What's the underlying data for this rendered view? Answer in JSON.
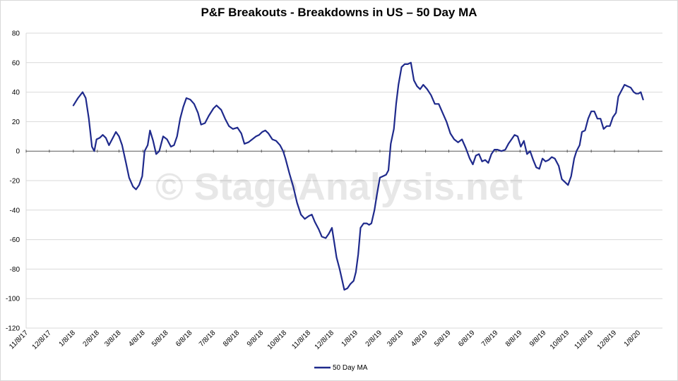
{
  "chart_data": {
    "type": "line",
    "title": "P&F Breakouts - Breakdowns in US – 50 Day MA",
    "watermark": "© StageAnalysis.net",
    "ylim": [
      -120,
      80
    ],
    "y_ticks": [
      80,
      60,
      40,
      20,
      0,
      -20,
      -40,
      -60,
      -80,
      -100,
      -120
    ],
    "x_tick_labels": [
      "11/8/17",
      "12/8/17",
      "1/8/18",
      "2/8/18",
      "3/8/18",
      "4/8/18",
      "5/8/18",
      "6/8/18",
      "7/8/18",
      "8/8/18",
      "9/8/18",
      "10/8/18",
      "11/8/18",
      "12/8/18",
      "1/8/19",
      "2/8/19",
      "3/8/19",
      "4/8/19",
      "5/8/19",
      "6/8/19",
      "7/8/19",
      "8/8/19",
      "9/8/19",
      "10/8/19",
      "11/8/19",
      "12/8/19",
      "1/8/20"
    ],
    "grid": true,
    "legend_position": "bottom",
    "colors": {
      "series": "#1f2a8c",
      "grid": "#d9d9d9",
      "axis": "#595959"
    },
    "series": [
      {
        "name": "50 Day MA",
        "points": [
          [
            "1/8/18",
            31
          ],
          [
            "1/14/18",
            36
          ],
          [
            "1/20/18",
            40
          ],
          [
            "1/24/18",
            36
          ],
          [
            "1/28/18",
            22
          ],
          [
            "2/1/18",
            3
          ],
          [
            "2/4/18",
            0
          ],
          [
            "2/7/18",
            8
          ],
          [
            "2/11/18",
            9
          ],
          [
            "2/15/18",
            11
          ],
          [
            "2/19/18",
            9
          ],
          [
            "2/23/18",
            4
          ],
          [
            "2/28/18",
            9
          ],
          [
            "3/4/18",
            13
          ],
          [
            "3/8/18",
            10
          ],
          [
            "3/12/18",
            4
          ],
          [
            "3/17/18",
            -8
          ],
          [
            "3/21/18",
            -18
          ],
          [
            "3/26/18",
            -24
          ],
          [
            "3/30/18",
            -26
          ],
          [
            "4/3/18",
            -23
          ],
          [
            "4/7/18",
            -17
          ],
          [
            "4/10/18",
            0
          ],
          [
            "4/14/18",
            4
          ],
          [
            "4/17/18",
            14
          ],
          [
            "4/21/18",
            7
          ],
          [
            "4/25/18",
            -2
          ],
          [
            "4/29/18",
            0
          ],
          [
            "5/4/18",
            10
          ],
          [
            "5/9/18",
            8
          ],
          [
            "5/14/18",
            3
          ],
          [
            "5/18/18",
            4
          ],
          [
            "5/22/18",
            10
          ],
          [
            "5/26/18",
            22
          ],
          [
            "5/30/18",
            30
          ],
          [
            "6/3/18",
            36
          ],
          [
            "6/8/18",
            35
          ],
          [
            "6/13/18",
            32
          ],
          [
            "6/18/18",
            26
          ],
          [
            "6/22/18",
            18
          ],
          [
            "6/27/18",
            19
          ],
          [
            "7/2/18",
            24
          ],
          [
            "7/8/18",
            29
          ],
          [
            "7/12/18",
            31
          ],
          [
            "7/18/18",
            28
          ],
          [
            "7/23/18",
            22
          ],
          [
            "7/28/18",
            17
          ],
          [
            "8/2/18",
            15
          ],
          [
            "8/8/18",
            16
          ],
          [
            "8/13/18",
            12
          ],
          [
            "8/17/18",
            5
          ],
          [
            "8/22/18",
            6
          ],
          [
            "8/27/18",
            8
          ],
          [
            "9/1/18",
            10
          ],
          [
            "9/5/18",
            11
          ],
          [
            "9/9/18",
            13
          ],
          [
            "9/13/18",
            14
          ],
          [
            "9/17/18",
            12
          ],
          [
            "9/22/18",
            8
          ],
          [
            "9/27/18",
            7
          ],
          [
            "10/2/18",
            4
          ],
          [
            "10/6/18",
            0
          ],
          [
            "10/9/18",
            -5
          ],
          [
            "10/14/18",
            -15
          ],
          [
            "10/19/18",
            -24
          ],
          [
            "10/24/18",
            -35
          ],
          [
            "10/29/18",
            -43
          ],
          [
            "11/3/18",
            -46
          ],
          [
            "11/8/18",
            -44
          ],
          [
            "11/12/18",
            -43
          ],
          [
            "11/16/18",
            -48
          ],
          [
            "11/21/18",
            -53
          ],
          [
            "11/25/18",
            -58
          ],
          [
            "11/30/18",
            -59
          ],
          [
            "12/4/18",
            -56
          ],
          [
            "12/8/18",
            -52
          ],
          [
            "12/11/18",
            -62
          ],
          [
            "12/14/18",
            -72
          ],
          [
            "12/18/18",
            -80
          ],
          [
            "12/21/18",
            -87
          ],
          [
            "12/24/18",
            -94
          ],
          [
            "12/28/18",
            -93
          ],
          [
            "1/1/19",
            -90
          ],
          [
            "1/5/19",
            -88
          ],
          [
            "1/8/19",
            -82
          ],
          [
            "1/11/19",
            -70
          ],
          [
            "1/14/19",
            -52
          ],
          [
            "1/18/19",
            -49
          ],
          [
            "1/22/19",
            -49
          ],
          [
            "1/25/19",
            -50
          ],
          [
            "1/28/19",
            -49
          ],
          [
            "2/1/19",
            -40
          ],
          [
            "2/4/19",
            -30
          ],
          [
            "2/8/19",
            -18
          ],
          [
            "2/12/19",
            -17
          ],
          [
            "2/16/19",
            -16
          ],
          [
            "2/19/19",
            -13
          ],
          [
            "2/22/19",
            5
          ],
          [
            "2/26/19",
            15
          ],
          [
            "3/1/19",
            32
          ],
          [
            "3/4/19",
            45
          ],
          [
            "3/8/19",
            57
          ],
          [
            "3/12/19",
            59
          ],
          [
            "3/16/19",
            59
          ],
          [
            "3/20/19",
            60
          ],
          [
            "3/24/19",
            48
          ],
          [
            "3/28/19",
            44
          ],
          [
            "4/1/19",
            42
          ],
          [
            "4/5/19",
            45
          ],
          [
            "4/10/19",
            42
          ],
          [
            "4/15/19",
            38
          ],
          [
            "4/20/19",
            32
          ],
          [
            "4/25/19",
            32
          ],
          [
            "4/30/19",
            26
          ],
          [
            "5/5/19",
            20
          ],
          [
            "5/10/19",
            12
          ],
          [
            "5/15/19",
            8
          ],
          [
            "5/20/19",
            6
          ],
          [
            "5/25/19",
            8
          ],
          [
            "5/30/19",
            2
          ],
          [
            "6/4/19",
            -5
          ],
          [
            "6/8/19",
            -9
          ],
          [
            "6/12/19",
            -3
          ],
          [
            "6/16/19",
            -2
          ],
          [
            "6/20/19",
            -7
          ],
          [
            "6/24/19",
            -6
          ],
          [
            "6/28/19",
            -8
          ],
          [
            "7/2/19",
            -2
          ],
          [
            "7/6/19",
            1
          ],
          [
            "7/10/19",
            1
          ],
          [
            "7/15/19",
            0
          ],
          [
            "7/20/19",
            1
          ],
          [
            "7/24/19",
            5
          ],
          [
            "7/28/19",
            8
          ],
          [
            "8/1/19",
            11
          ],
          [
            "8/5/19",
            10
          ],
          [
            "8/9/19",
            3
          ],
          [
            "8/13/19",
            7
          ],
          [
            "8/17/19",
            -2
          ],
          [
            "8/21/19",
            0
          ],
          [
            "8/25/19",
            -6
          ],
          [
            "8/29/19",
            -11
          ],
          [
            "9/2/19",
            -12
          ],
          [
            "9/6/19",
            -5
          ],
          [
            "9/10/19",
            -7
          ],
          [
            "9/14/19",
            -6
          ],
          [
            "9/18/19",
            -4
          ],
          [
            "9/22/19",
            -5
          ],
          [
            "9/27/19",
            -10
          ],
          [
            "10/1/19",
            -19
          ],
          [
            "10/5/19",
            -21
          ],
          [
            "10/9/19",
            -23
          ],
          [
            "10/13/19",
            -17
          ],
          [
            "10/17/19",
            -5
          ],
          [
            "10/20/19",
            0
          ],
          [
            "10/24/19",
            4
          ],
          [
            "10/27/19",
            13
          ],
          [
            "10/31/19",
            14
          ],
          [
            "11/4/19",
            22
          ],
          [
            "11/8/19",
            27
          ],
          [
            "11/12/19",
            27
          ],
          [
            "11/16/19",
            22
          ],
          [
            "11/20/19",
            22
          ],
          [
            "11/24/19",
            15
          ],
          [
            "11/28/19",
            17
          ],
          [
            "12/2/19",
            17
          ],
          [
            "12/6/19",
            23
          ],
          [
            "12/10/19",
            26
          ],
          [
            "12/13/19",
            37
          ],
          [
            "12/17/19",
            41
          ],
          [
            "12/21/19",
            45
          ],
          [
            "12/25/19",
            44
          ],
          [
            "12/29/19",
            43
          ],
          [
            "1/2/20",
            40
          ],
          [
            "1/5/20",
            39
          ],
          [
            "1/8/20",
            39
          ],
          [
            "1/11/20",
            40
          ],
          [
            "1/14/20",
            35
          ]
        ]
      }
    ]
  }
}
